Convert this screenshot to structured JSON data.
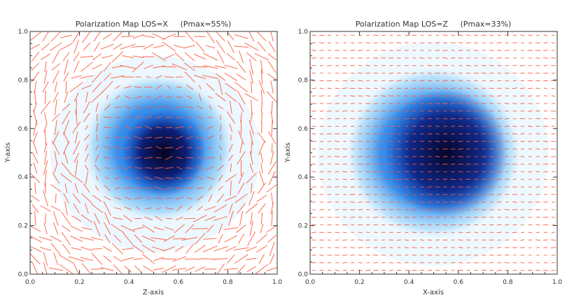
{
  "figure": {
    "panel_count": 2
  },
  "colors": {
    "axis": "#333333",
    "vector": "#ff5a3a",
    "density_dark": "#06063a",
    "density_mid": "#0a5cd8",
    "density_light": "#bfe6ff",
    "background": "#ffffff"
  },
  "chart_data": [
    {
      "type": "heatmap",
      "subtype": "polarization-vector-map",
      "title": "Polarization Map LOS=X     (Pmax=55%)",
      "xlabel": "Z-axis",
      "ylabel": "Y-axis",
      "xlim": [
        0.0,
        1.0
      ],
      "ylim": [
        0.0,
        1.0
      ],
      "xticks": [
        "0.0",
        "0.2",
        "0.4",
        "0.6",
        "0.8",
        "1.0"
      ],
      "yticks": [
        "0.0",
        "0.2",
        "0.4",
        "0.6",
        "0.8",
        "1.0"
      ],
      "pmax_percent": 55,
      "vector_grid": 24,
      "cloud_center": [
        0.52,
        0.52
      ],
      "cloud_radius": 0.31,
      "core_center": [
        0.54,
        0.5
      ],
      "core_radius": 0.17,
      "ordered_field": false
    },
    {
      "type": "heatmap",
      "subtype": "polarization-vector-map",
      "title": "Polarization Map LOS=Z     (Pmax=33%)",
      "xlabel": "X-axis",
      "ylabel": "Y-axis",
      "xlim": [
        0.0,
        1.0
      ],
      "ylim": [
        0.0,
        1.0
      ],
      "xticks": [
        "0.0",
        "0.2",
        "0.4",
        "0.6",
        "0.8",
        "1.0"
      ],
      "yticks": [
        "0.0",
        "0.2",
        "0.4",
        "0.6",
        "0.8",
        "1.0"
      ],
      "pmax_percent": 33,
      "vector_grid": 32,
      "cloud_center": [
        0.5,
        0.5
      ],
      "cloud_radius": 0.36,
      "core_center": [
        0.55,
        0.5
      ],
      "core_radius": 0.25,
      "ordered_field": true
    }
  ]
}
